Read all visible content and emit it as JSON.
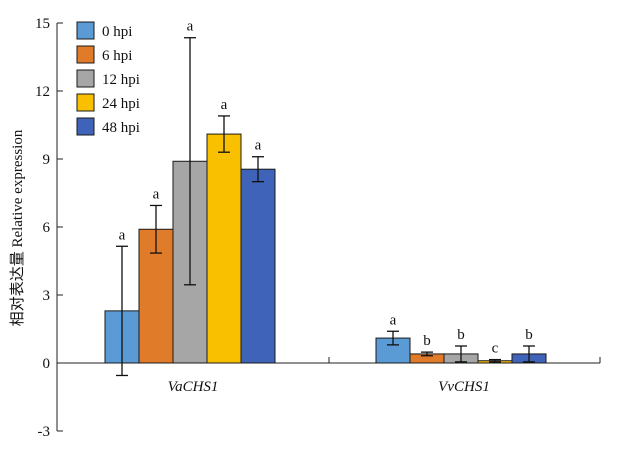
{
  "chart_data": {
    "type": "bar",
    "ylabel": "相对表达量 Relative expression",
    "ylim": [
      -3,
      15
    ],
    "yticks": [
      -3,
      0,
      3,
      6,
      9,
      12,
      15
    ],
    "categories": [
      "VaCHS1",
      "VvCHS1"
    ],
    "grid": false,
    "legend_position": "top-left",
    "series": [
      {
        "name": "0 hpi",
        "color": "#5b9bd5",
        "values": [
          2.3,
          1.1
        ],
        "error": [
          2.85,
          0.3
        ],
        "letters": [
          "a",
          "a"
        ]
      },
      {
        "name": "6 hpi",
        "color": "#e07b2a",
        "values": [
          5.9,
          0.4
        ],
        "error": [
          1.05,
          0.08
        ],
        "letters": [
          "a",
          "b"
        ]
      },
      {
        "name": "12 hpi",
        "color": "#a6a6a6",
        "values": [
          8.9,
          0.4
        ],
        "error": [
          5.45,
          0.35
        ],
        "letters": [
          "a",
          "b"
        ]
      },
      {
        "name": "24 hpi",
        "color": "#f9c000",
        "values": [
          10.1,
          0.1
        ],
        "error": [
          0.8,
          0.05
        ],
        "letters": [
          "a",
          "c"
        ]
      },
      {
        "name": "48 hpi",
        "color": "#3f63b8",
        "values": [
          8.55,
          0.4
        ],
        "error": [
          0.55,
          0.35
        ],
        "letters": [
          "a",
          "b"
        ]
      }
    ]
  }
}
